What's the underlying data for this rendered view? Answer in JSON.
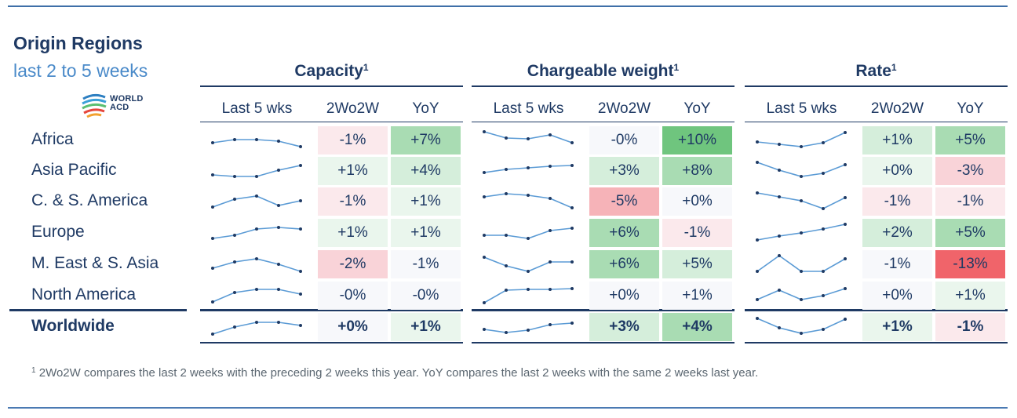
{
  "title": "Origin Regions",
  "subtitle": "last 2 to 5 weeks",
  "logo": {
    "line1": "WORLD",
    "line2": "ACD"
  },
  "footnote": {
    "marker": "1",
    "text": "2Wo2W compares the last 2 weeks with the preceding 2 weeks this year. YoY compares the last 2 weeks with the same 2 weeks last year."
  },
  "colors": {
    "header_text": "#1f3a64",
    "subtitle": "#4a8ac9",
    "sparkline": "#5b9bd5",
    "strong_green": "#6fc57e",
    "green": "#a9dcb3",
    "light_green": "#d5eedb",
    "faint_green": "#eaf6ed",
    "neutral": "#f7f8fb",
    "faint_red": "#fbe9ec",
    "light_red": "#f9d3d8",
    "red": "#f6b3b8",
    "strong_red": "#f0646a"
  },
  "chart_data": {
    "type": "table",
    "sections": [
      {
        "key": "capacity",
        "title": "Capacity",
        "title_sup": "1"
      },
      {
        "key": "chargeable_weight",
        "title": "Chargeable weight",
        "title_sup": "1"
      },
      {
        "key": "rate",
        "title": "Rate",
        "title_sup": "1"
      }
    ],
    "column_headers": [
      "Last 5 wks",
      "2Wo2W",
      "YoY"
    ],
    "rows": [
      {
        "label": "Africa",
        "bold": false,
        "capacity": {
          "trend": [
            0.3,
            0.5,
            0.5,
            0.4,
            0.05
          ],
          "wow": "-1%",
          "wow_shade": "faint_red",
          "yoy": "+7%",
          "yoy_shade": "green"
        },
        "chargeable_weight": {
          "trend": [
            1.0,
            0.6,
            0.55,
            0.8,
            0.3
          ],
          "wow": "-0%",
          "wow_shade": "neutral",
          "yoy": "+10%",
          "yoy_shade": "strong_green"
        },
        "rate": {
          "trend": [
            0.35,
            0.2,
            0.05,
            0.3,
            0.95
          ],
          "wow": "+1%",
          "wow_shade": "light_green",
          "yoy": "+5%",
          "yoy_shade": "green"
        }
      },
      {
        "label": "Asia Pacific",
        "bold": false,
        "capacity": {
          "trend": [
            0.2,
            0.1,
            0.1,
            0.5,
            0.8
          ],
          "wow": "+1%",
          "wow_shade": "faint_green",
          "yoy": "+4%",
          "yoy_shade": "light_green"
        },
        "chargeable_weight": {
          "trend": [
            0.35,
            0.55,
            0.65,
            0.75,
            0.8
          ],
          "wow": "+3%",
          "wow_shade": "light_green",
          "yoy": "+8%",
          "yoy_shade": "green"
        },
        "rate": {
          "trend": [
            1.0,
            0.5,
            0.1,
            0.3,
            0.85
          ],
          "wow": "+0%",
          "wow_shade": "faint_green",
          "yoy": "-3%",
          "yoy_shade": "light_red"
        }
      },
      {
        "label": "C. & S. America",
        "bold": false,
        "capacity": {
          "trend": [
            0.1,
            0.6,
            0.8,
            0.2,
            0.5
          ],
          "wow": "-1%",
          "wow_shade": "faint_red",
          "yoy": "+1%",
          "yoy_shade": "faint_green"
        },
        "chargeable_weight": {
          "trend": [
            0.75,
            0.95,
            0.85,
            0.65,
            0.05
          ],
          "wow": "-5%",
          "wow_shade": "red",
          "yoy": "+0%",
          "yoy_shade": "neutral"
        },
        "rate": {
          "trend": [
            1.0,
            0.75,
            0.5,
            0.0,
            0.7
          ],
          "wow": "-1%",
          "wow_shade": "faint_red",
          "yoy": "-1%",
          "yoy_shade": "faint_red"
        }
      },
      {
        "label": "Europe",
        "bold": false,
        "capacity": {
          "trend": [
            0.1,
            0.3,
            0.7,
            0.8,
            0.7
          ],
          "wow": "+1%",
          "wow_shade": "faint_green",
          "yoy": "+1%",
          "yoy_shade": "faint_green"
        },
        "chargeable_weight": {
          "trend": [
            0.3,
            0.3,
            0.1,
            0.6,
            0.75
          ],
          "wow": "+6%",
          "wow_shade": "green",
          "yoy": "-1%",
          "yoy_shade": "faint_red"
        },
        "rate": {
          "trend": [
            0.0,
            0.25,
            0.45,
            0.7,
            1.0
          ],
          "wow": "+2%",
          "wow_shade": "light_green",
          "yoy": "+5%",
          "yoy_shade": "green"
        }
      },
      {
        "label": "M. East & S. Asia",
        "bold": false,
        "capacity": {
          "trend": [
            0.2,
            0.6,
            0.8,
            0.45,
            0.0
          ],
          "wow": "-2%",
          "wow_shade": "light_red",
          "yoy": "-1%",
          "yoy_shade": "neutral"
        },
        "chargeable_weight": {
          "trend": [
            0.9,
            0.35,
            0.0,
            0.6,
            0.6
          ],
          "wow": "+6%",
          "wow_shade": "green",
          "yoy": "+5%",
          "yoy_shade": "light_green"
        },
        "rate": {
          "trend": [
            0.0,
            1.0,
            0.0,
            0.0,
            0.8
          ],
          "wow": "-1%",
          "wow_shade": "neutral",
          "yoy": "-13%",
          "yoy_shade": "strong_red"
        }
      },
      {
        "label": "North America",
        "bold": false,
        "capacity": {
          "trend": [
            0.05,
            0.65,
            0.85,
            0.85,
            0.55
          ],
          "wow": "-0%",
          "wow_shade": "neutral",
          "yoy": "-0%",
          "yoy_shade": "neutral"
        },
        "chargeable_weight": {
          "trend": [
            0.0,
            0.8,
            0.85,
            0.85,
            0.9
          ],
          "wow": "+0%",
          "wow_shade": "neutral",
          "yoy": "+1%",
          "yoy_shade": "neutral"
        },
        "rate": {
          "trend": [
            0.2,
            0.8,
            0.2,
            0.45,
            0.9
          ],
          "wow": "+0%",
          "wow_shade": "neutral",
          "yoy": "+1%",
          "yoy_shade": "faint_green"
        }
      },
      {
        "label": "Worldwide",
        "bold": true,
        "capacity": {
          "trend": [
            0.0,
            0.45,
            0.75,
            0.75,
            0.55
          ],
          "wow": "+0%",
          "wow_shade": "neutral",
          "yoy": "+1%",
          "yoy_shade": "faint_green"
        },
        "chargeable_weight": {
          "trend": [
            0.3,
            0.1,
            0.25,
            0.6,
            0.7
          ],
          "wow": "+3%",
          "wow_shade": "light_green",
          "yoy": "+4%",
          "yoy_shade": "green"
        },
        "rate": {
          "trend": [
            1.0,
            0.4,
            0.05,
            0.3,
            0.95
          ],
          "wow": "+1%",
          "wow_shade": "faint_green",
          "yoy": "-1%",
          "yoy_shade": "faint_red"
        }
      }
    ]
  }
}
